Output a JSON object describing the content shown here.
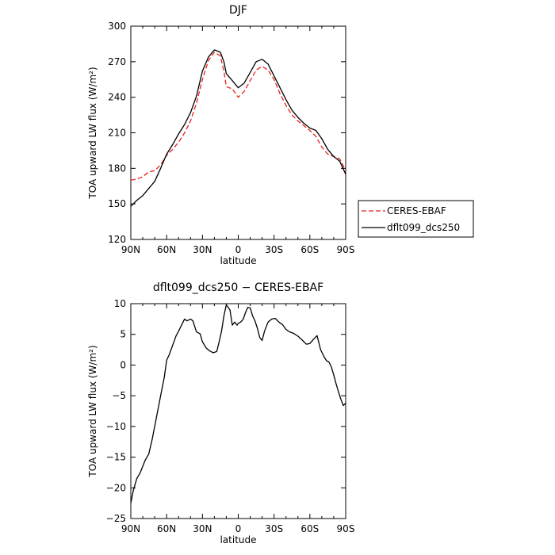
{
  "chart_data": [
    {
      "type": "line",
      "title": "DJF",
      "xlabel": "latitude",
      "ylabel": "TOA upward LW flux (W/m²)",
      "x_ticks": [
        {
          "value": -90,
          "label": "90N"
        },
        {
          "value": -60,
          "label": "60N"
        },
        {
          "value": -30,
          "label": "30N"
        },
        {
          "value": 0,
          "label": "0"
        },
        {
          "value": 30,
          "label": "30S"
        },
        {
          "value": 60,
          "label": "60S"
        },
        {
          "value": 90,
          "label": "90S"
        }
      ],
      "y_ticks": [
        120,
        150,
        180,
        210,
        240,
        270,
        300
      ],
      "xlim": [
        -90,
        90
      ],
      "ylim": [
        120,
        300
      ],
      "grid": false,
      "legend": {
        "placement": "right-outside",
        "entries": [
          "CERES-EBAF",
          "dflt099_dcs250"
        ]
      },
      "series": [
        {
          "name": "CERES-EBAF",
          "color": "#e8221c",
          "dash": "dashed",
          "x": [
            -90,
            -85,
            -80,
            -75,
            -70,
            -65,
            -60,
            -55,
            -50,
            -45,
            -40,
            -35,
            -30,
            -25,
            -20,
            -15,
            -12,
            -10,
            -5,
            0,
            5,
            10,
            15,
            20,
            25,
            30,
            35,
            40,
            45,
            50,
            55,
            60,
            65,
            70,
            75,
            80,
            85,
            90
          ],
          "y": [
            170,
            171,
            173,
            177,
            178,
            183,
            191,
            196,
            202,
            210,
            220,
            235,
            255,
            271,
            278,
            275,
            262,
            249,
            247,
            240,
            245,
            254,
            263,
            266,
            263,
            255,
            243,
            233,
            225,
            220,
            216,
            212,
            207,
            198,
            192,
            190,
            188,
            178
          ]
        },
        {
          "name": "dflt099_dcs250",
          "color": "#000000",
          "dash": "solid",
          "x": [
            -90,
            -85,
            -80,
            -75,
            -70,
            -65,
            -60,
            -55,
            -50,
            -45,
            -40,
            -35,
            -30,
            -25,
            -20,
            -15,
            -12,
            -10,
            -5,
            0,
            5,
            10,
            15,
            20,
            25,
            30,
            35,
            40,
            45,
            50,
            55,
            60,
            65,
            70,
            75,
            80,
            85,
            90
          ],
          "y": [
            148,
            153,
            157,
            163,
            169,
            180,
            192,
            200,
            209,
            217,
            227,
            241,
            262,
            274,
            280,
            278,
            270,
            260,
            254,
            248,
            252,
            261,
            270,
            272,
            268,
            258,
            248,
            238,
            229,
            223,
            218,
            214,
            212,
            205,
            196,
            190,
            186,
            175
          ]
        }
      ]
    },
    {
      "type": "line",
      "title": "dflt099_dcs250 − CERES-EBAF",
      "xlabel": "latitude",
      "ylabel": "TOA upward LW flux (W/m²)",
      "x_ticks": [
        {
          "value": -90,
          "label": "90N"
        },
        {
          "value": -60,
          "label": "60N"
        },
        {
          "value": -30,
          "label": "30N"
        },
        {
          "value": 0,
          "label": "0"
        },
        {
          "value": 30,
          "label": "30S"
        },
        {
          "value": 60,
          "label": "60S"
        },
        {
          "value": 90,
          "label": "90S"
        }
      ],
      "y_ticks": [
        -25,
        -20,
        -15,
        -10,
        -5,
        0,
        5,
        10
      ],
      "xlim": [
        -90,
        90
      ],
      "ylim": [
        -25,
        10
      ],
      "grid": false,
      "series": [
        {
          "color": "#000000",
          "dash": "solid",
          "x": [
            -90,
            -88,
            -85,
            -82,
            -78,
            -75,
            -72,
            -70,
            -68,
            -65,
            -62,
            -60,
            -58,
            -55,
            -52,
            -50,
            -48,
            -45,
            -43,
            -40,
            -38,
            -35,
            -32,
            -30,
            -27,
            -24,
            -21,
            -18,
            -16,
            -14,
            -12,
            -10,
            -7,
            -5,
            -3,
            -1,
            0,
            2,
            4,
            6,
            8,
            10,
            12,
            14,
            16,
            18,
            20,
            22,
            25,
            28,
            31,
            34,
            37,
            40,
            43,
            46,
            50,
            54,
            57,
            60,
            63,
            66,
            69,
            72,
            74,
            76,
            78,
            80,
            82,
            84,
            86,
            88,
            90
          ],
          "y": [
            -22.5,
            -20.5,
            -18.5,
            -17.5,
            -15.5,
            -14.5,
            -12,
            -10,
            -8,
            -5,
            -2,
            0.8,
            1.6,
            3.2,
            4.8,
            5.5,
            6.3,
            7.5,
            7.2,
            7.5,
            7.2,
            5.4,
            5.1,
            3.8,
            2.8,
            2.3,
            2,
            2.2,
            3.8,
            5.5,
            8,
            9.8,
            9,
            6.5,
            7,
            6.5,
            6.8,
            7,
            7.4,
            8.5,
            9.4,
            9.3,
            8,
            7.2,
            6,
            4.5,
            4,
            5.5,
            7,
            7.5,
            7.6,
            7,
            6.6,
            5.8,
            5.4,
            5.2,
            4.7,
            4,
            3.4,
            3.5,
            4.2,
            4.8,
            2.5,
            1.3,
            0.7,
            0.5,
            -0.3,
            -1.6,
            -3.1,
            -4.4,
            -5.6,
            -6.6,
            -6.2
          ]
        }
      ]
    }
  ]
}
